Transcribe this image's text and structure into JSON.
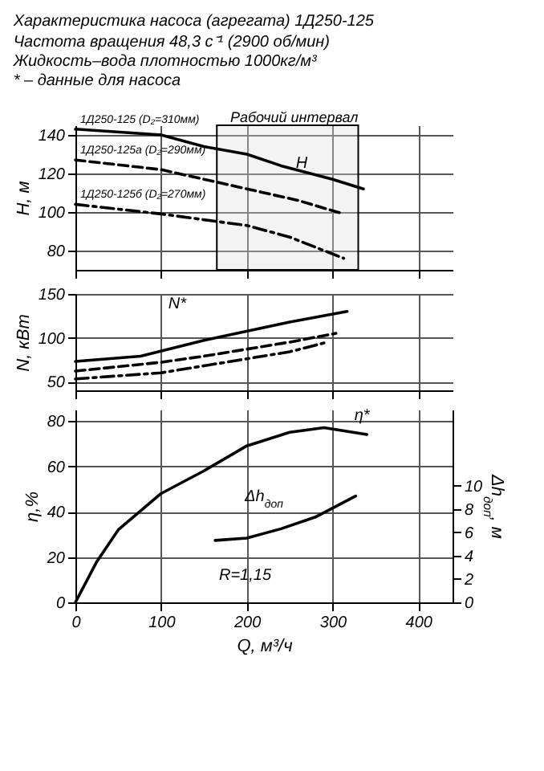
{
  "chart_data": [
    {
      "type": "line",
      "title": "Характеристика насоса (агрегата) 1Д250-125",
      "subtitle": "Частота вращения 48,3 с⁻¹ (2900 об/мин)\nЖидкость–вода плотностью 1000кг/м³\n* – данные для насоса",
      "ylabel": "H, м",
      "xlim": [
        0,
        440
      ],
      "xticks": [
        0,
        100,
        200,
        300,
        400
      ],
      "ylim": [
        70,
        145
      ],
      "yticks": [
        80,
        100,
        120,
        140
      ],
      "grid": true,
      "tick_labels": "y",
      "series": [
        {
          "name": "1Д250-125 (D₂=310мм)",
          "color": "#000000",
          "line_style": "solid",
          "x": [
            0,
            100,
            150,
            200,
            240,
            300,
            336
          ],
          "values": [
            143,
            140,
            134,
            130,
            124,
            117,
            112
          ]
        },
        {
          "name": "1Д250-125а (D₂=290мм)",
          "color": "#000000",
          "line_style": "dashed",
          "x": [
            0,
            100,
            200,
            260,
            313
          ],
          "values": [
            127,
            122,
            112,
            106,
            99
          ]
        },
        {
          "name": "1Д250-125б (D₂=270мм)",
          "color": "#000000",
          "line_style": "dotted",
          "x": [
            0,
            100,
            200,
            250,
            313
          ],
          "values": [
            104,
            99,
            93,
            87,
            76
          ]
        }
      ],
      "bands": [
        {
          "axis": "x",
          "from": 165,
          "to": 330,
          "label": "Рабочий интервал"
        }
      ],
      "annotations": [
        "H"
      ]
    },
    {
      "type": "line",
      "ylabel": "N, кВт",
      "xlim": [
        0,
        440
      ],
      "xticks": [
        0,
        100,
        200,
        300,
        400
      ],
      "ylim": [
        40,
        150
      ],
      "yticks": [
        50,
        100,
        150
      ],
      "grid": true,
      "tick_labels": "y",
      "series": [
        {
          "color": "#000000",
          "line_style": "solid",
          "x": [
            0,
            76,
            150,
            250,
            317
          ],
          "values": [
            73,
            79,
            97,
            118,
            130
          ]
        },
        {
          "color": "#000000",
          "line_style": "dashed",
          "x": [
            0,
            100,
            150,
            250,
            304
          ],
          "values": [
            62,
            72,
            79,
            95,
            105
          ]
        },
        {
          "color": "#000000",
          "line_style": "dotted",
          "x": [
            0,
            100,
            150,
            250,
            290
          ],
          "values": [
            53,
            60,
            68,
            84,
            94
          ]
        }
      ],
      "annotations": [
        "N*"
      ]
    },
    {
      "type": "line",
      "xlabel": "Q, м³/ч",
      "ylabel": "η,%",
      "y2label": "Δh$_{доп}$, м",
      "xlim": [
        0,
        440
      ],
      "xticks": [
        0,
        100,
        200,
        300,
        400
      ],
      "ylim": [
        0,
        85
      ],
      "yticks": [
        0,
        20,
        40,
        60,
        80
      ],
      "y2lim": [
        0,
        16.5
      ],
      "y2ticks": [
        0,
        2,
        4,
        6,
        8,
        10
      ],
      "grid": true,
      "series": [
        {
          "color": "#000000",
          "line_style": "solid",
          "x": [
            0,
            25,
            50,
            100,
            150,
            200,
            250,
            290,
            340
          ],
          "values": [
            0,
            18,
            32,
            48,
            58,
            69,
            75,
            77,
            74
          ]
        },
        {
          "color": "#000000",
          "line_style": "solid",
          "axis": "y2",
          "x": [
            163,
            200,
            240,
            280,
            327
          ],
          "values": [
            5.3,
            5.5,
            6.3,
            7.3,
            9.1
          ]
        }
      ],
      "annotations": [
        "η*",
        "Δh$_{доп}$",
        "R=1,15"
      ]
    }
  ]
}
